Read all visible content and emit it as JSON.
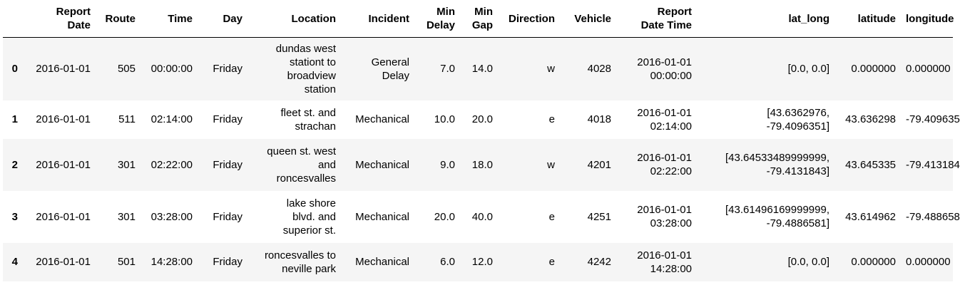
{
  "columns": [
    [
      "Report",
      "Date"
    ],
    [
      "Route"
    ],
    [
      "Time"
    ],
    [
      "Day"
    ],
    [
      "Location"
    ],
    [
      "Incident"
    ],
    [
      "Min",
      "Delay"
    ],
    [
      "Min",
      "Gap"
    ],
    [
      "Direction"
    ],
    [
      "Vehicle"
    ],
    [
      "Report",
      "Date Time"
    ],
    [
      "lat_long"
    ],
    [
      "latitude"
    ],
    [
      "longitude"
    ]
  ],
  "rows": [
    {
      "index": "0",
      "cells": [
        [
          "2016-01-01"
        ],
        [
          "505"
        ],
        [
          "00:00:00"
        ],
        [
          "Friday"
        ],
        [
          "dundas west",
          "stationt to",
          "broadview",
          "station"
        ],
        [
          "General",
          "Delay"
        ],
        [
          "7.0"
        ],
        [
          "14.0"
        ],
        [
          "w"
        ],
        [
          "4028"
        ],
        [
          "2016-01-01",
          "00:00:00"
        ],
        [
          "[0.0, 0.0]"
        ],
        [
          "0.000000"
        ],
        [
          "0.000000"
        ]
      ]
    },
    {
      "index": "1",
      "cells": [
        [
          "2016-01-01"
        ],
        [
          "511"
        ],
        [
          "02:14:00"
        ],
        [
          "Friday"
        ],
        [
          "fleet st. and",
          "strachan"
        ],
        [
          "Mechanical"
        ],
        [
          "10.0"
        ],
        [
          "20.0"
        ],
        [
          "e"
        ],
        [
          "4018"
        ],
        [
          "2016-01-01",
          "02:14:00"
        ],
        [
          "[43.6362976,",
          "-79.4096351]"
        ],
        [
          "43.636298"
        ],
        [
          "-79.409635"
        ]
      ]
    },
    {
      "index": "2",
      "cells": [
        [
          "2016-01-01"
        ],
        [
          "301"
        ],
        [
          "02:22:00"
        ],
        [
          "Friday"
        ],
        [
          "queen st. west",
          "and",
          "roncesvalles"
        ],
        [
          "Mechanical"
        ],
        [
          "9.0"
        ],
        [
          "18.0"
        ],
        [
          "w"
        ],
        [
          "4201"
        ],
        [
          "2016-01-01",
          "02:22:00"
        ],
        [
          "[43.64533489999999,",
          "-79.4131843]"
        ],
        [
          "43.645335"
        ],
        [
          "-79.413184"
        ]
      ]
    },
    {
      "index": "3",
      "cells": [
        [
          "2016-01-01"
        ],
        [
          "301"
        ],
        [
          "03:28:00"
        ],
        [
          "Friday"
        ],
        [
          "lake shore",
          "blvd. and",
          "superior st."
        ],
        [
          "Mechanical"
        ],
        [
          "20.0"
        ],
        [
          "40.0"
        ],
        [
          "e"
        ],
        [
          "4251"
        ],
        [
          "2016-01-01",
          "03:28:00"
        ],
        [
          "[43.61496169999999,",
          "-79.4886581]"
        ],
        [
          "43.614962"
        ],
        [
          "-79.488658"
        ]
      ]
    },
    {
      "index": "4",
      "cells": [
        [
          "2016-01-01"
        ],
        [
          "501"
        ],
        [
          "14:28:00"
        ],
        [
          "Friday"
        ],
        [
          "roncesvalles to",
          "neville park"
        ],
        [
          "Mechanical"
        ],
        [
          "6.0"
        ],
        [
          "12.0"
        ],
        [
          "e"
        ],
        [
          "4242"
        ],
        [
          "2016-01-01",
          "14:28:00"
        ],
        [
          "[0.0, 0.0]"
        ],
        [
          "0.000000"
        ],
        [
          "0.000000"
        ]
      ]
    }
  ]
}
